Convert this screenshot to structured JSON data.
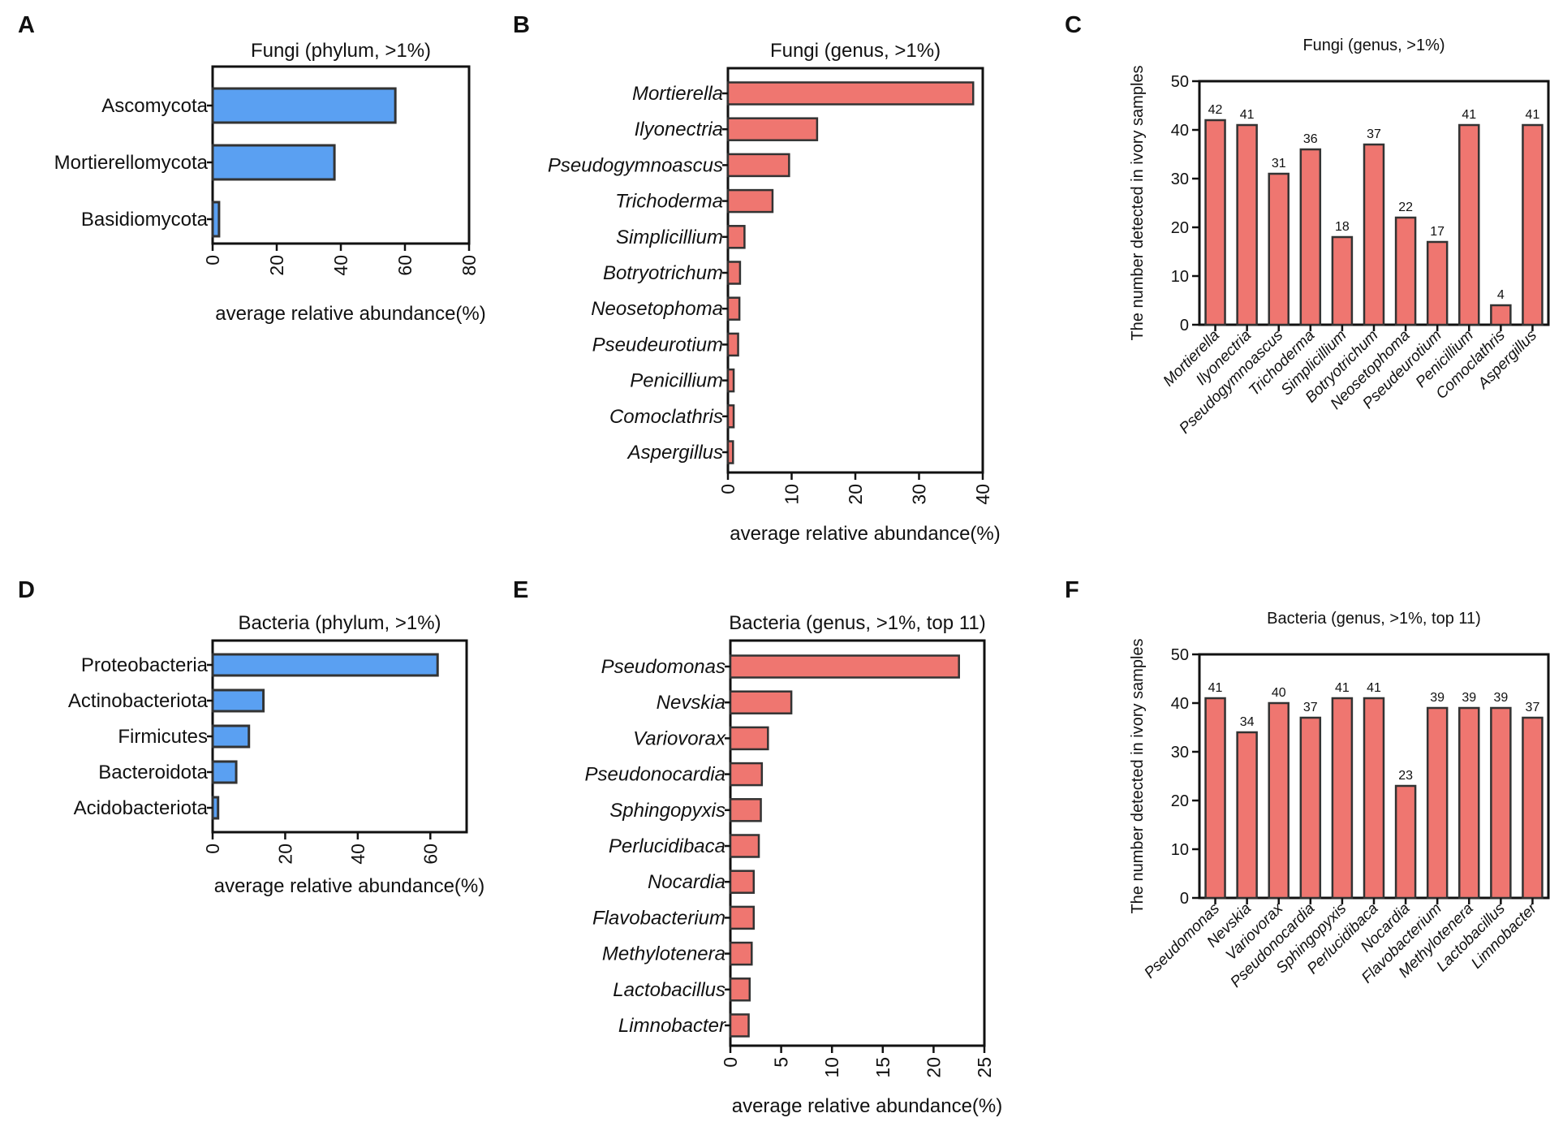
{
  "panel_letters": [
    "A",
    "B",
    "C",
    "D",
    "E",
    "F"
  ],
  "colors": {
    "blue_bar": "#5aa0f2",
    "red_bar": "#ef7670",
    "outline": "#333333"
  },
  "chart_data": [
    {
      "id": "A",
      "type": "bar",
      "orientation": "horizontal",
      "title": "Fungi (phylum, >1%)",
      "categories": [
        "Ascomycota",
        "Mortierellomycota",
        "Basidiomycota"
      ],
      "values": [
        57,
        38,
        2
      ],
      "xlabel": "average relative abundance(%)",
      "ylabel": "",
      "xlim": [
        0,
        80
      ],
      "ticks": [
        0,
        20,
        40,
        60,
        80
      ],
      "italic_labels": false
    },
    {
      "id": "B",
      "type": "bar",
      "orientation": "horizontal",
      "title": "Fungi (genus, >1%)",
      "categories": [
        "Mortierella",
        "Ilyonectria",
        "Pseudogymnoascus",
        "Trichoderma",
        "Simplicillium",
        "Botryotrichum",
        "Neosetophoma",
        "Pseudeurotium",
        "Penicillium",
        "Comoclathris",
        "Aspergillus"
      ],
      "values": [
        38.5,
        14,
        9.6,
        7,
        2.6,
        1.9,
        1.8,
        1.6,
        0.9,
        0.9,
        0.8
      ],
      "xlabel": "average relative abundance(%)",
      "ylabel": "",
      "xlim": [
        0,
        40
      ],
      "ticks": [
        0,
        10,
        20,
        30,
        40
      ],
      "italic_labels": true
    },
    {
      "id": "C",
      "type": "bar",
      "orientation": "vertical",
      "title": "Fungi (genus, >1%)",
      "categories": [
        "Mortierella",
        "Ilyonectria",
        "Pseudogymnoascus",
        "Trichoderma",
        "Simplicillium",
        "Botryotrichum",
        "Neosetophoma",
        "Pseudeurotium",
        "Penicillium",
        "Comoclathris",
        "Aspergillus"
      ],
      "values": [
        42,
        41,
        31,
        36,
        18,
        37,
        22,
        17,
        41,
        4,
        41
      ],
      "data_labels": [
        "42",
        "41",
        "31",
        "36",
        "18",
        "37",
        "22",
        "17",
        "41",
        "4",
        "41"
      ],
      "xlabel": "",
      "ylabel": "The number detected in ivory  samples",
      "ylim": [
        0,
        50
      ],
      "ticks": [
        0,
        10,
        20,
        30,
        40,
        50
      ]
    },
    {
      "id": "D",
      "type": "bar",
      "orientation": "horizontal",
      "title": "Bacteria (phylum, >1%)",
      "categories": [
        "Proteobacteria",
        "Actinobacteriota",
        "Firmicutes",
        "Bacteroidota",
        "Acidobacteriota"
      ],
      "values": [
        62,
        14,
        10,
        6.5,
        1.5
      ],
      "xlabel": "average relative abundance(%)",
      "ylabel": "",
      "xlim": [
        0,
        70
      ],
      "ticks": [
        0,
        20,
        40,
        60
      ],
      "italic_labels": false
    },
    {
      "id": "E",
      "type": "bar",
      "orientation": "horizontal",
      "title": "Bacteria (genus, >1%, top 11)",
      "categories": [
        "Pseudomonas",
        "Nevskia",
        "Variovorax",
        "Pseudonocardia",
        "Sphingopyxis",
        "Perlucidibaca",
        "Nocardia",
        "Flavobacterium",
        "Methylotenera",
        "Lactobacillus",
        "Limnobacter"
      ],
      "values": [
        22.5,
        6,
        3.7,
        3.1,
        3,
        2.8,
        2.3,
        2.3,
        2.1,
        1.9,
        1.8
      ],
      "xlabel": "average relative abundance(%)",
      "ylabel": "",
      "xlim": [
        0,
        25
      ],
      "ticks": [
        0,
        5,
        10,
        15,
        20,
        25
      ],
      "italic_labels": true
    },
    {
      "id": "F",
      "type": "bar",
      "orientation": "vertical",
      "title": "Bacteria (genus, >1%, top 11)",
      "categories": [
        "Pseudomonas",
        "Nevskia",
        "Variovorax",
        "Pseudonocardia",
        "Sphingopyxis",
        "Perlucidibaca",
        "Nocardia",
        "Flavobacterium",
        "Methylotenera",
        "Lactobacillus",
        "Limnobacter"
      ],
      "values": [
        41,
        34,
        40,
        37,
        41,
        41,
        23,
        39,
        39,
        39,
        37
      ],
      "data_labels": [
        "41",
        "34",
        "40",
        "37",
        "41",
        "41",
        "23",
        "39",
        "39",
        "39",
        "37"
      ],
      "xlabel": "",
      "ylabel": "The number detected in ivory  samples",
      "ylim": [
        0,
        50
      ],
      "ticks": [
        0,
        10,
        20,
        30,
        40,
        50
      ]
    }
  ]
}
